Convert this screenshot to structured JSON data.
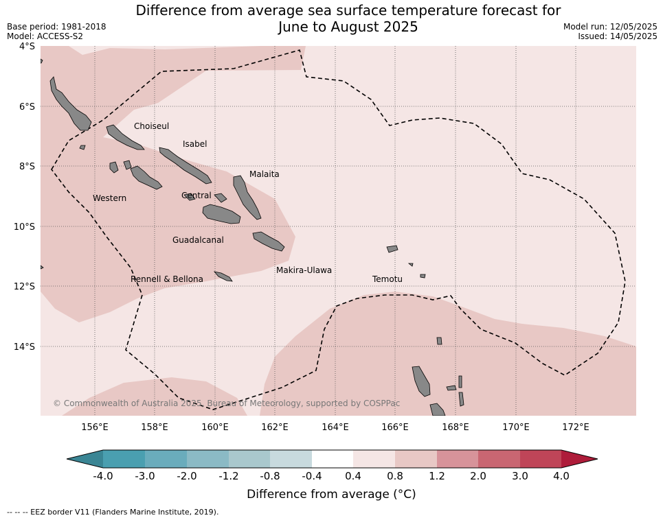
{
  "header": {
    "title_line1": "Difference from average sea surface temperature forecast for",
    "title_line2": "June to August 2025",
    "base_period": "Base period: 1981-2018",
    "model": "Model: ACCESS-S2",
    "model_run": "Model run: 12/05/2025",
    "issued": "Issued: 14/05/2025"
  },
  "map": {
    "lat_ticks": [
      "4°S",
      "6°S",
      "8°S",
      "10°S",
      "12°S",
      "14°S"
    ],
    "lon_ticks": [
      "156°E",
      "158°E",
      "160°E",
      "162°E",
      "164°E",
      "166°E",
      "168°E",
      "170°E",
      "172°E"
    ],
    "province_labels": [
      "Choiseul",
      "Isabel",
      "Malaita",
      "Western",
      "Central",
      "Guadalcanal",
      "Makira-Ulawa",
      "Rennell & Bellona",
      "Temotu"
    ],
    "copyright": "© Commonwealth of Australia 2025, Bureau of Meteorology, supported by COSPPac",
    "ocean_color": "#f5e6e5",
    "anomaly_band_color": "#e8c8c5",
    "land_color": "#888888",
    "eez_line_color": "#000000"
  },
  "colorbar": {
    "tick_labels": [
      "-4.0",
      "-3.0",
      "-2.0",
      "-1.2",
      "-0.8",
      "-0.4",
      "0.4",
      "0.8",
      "1.2",
      "2.0",
      "3.0",
      "4.0"
    ],
    "colors": [
      "#3a8594",
      "#4a9fb0",
      "#6aacbc",
      "#8bbac5",
      "#a9c8cd",
      "#c8dade",
      "#ffffff",
      "#f5e6e5",
      "#e8c8c5",
      "#d7939a",
      "#c96672",
      "#bf4558",
      "#ae1c3a"
    ],
    "label": "Difference from average (°C)"
  },
  "footer": {
    "eez_note": "--  --  -- EEZ border V11 (Flanders Marine Institute, 2019)."
  }
}
